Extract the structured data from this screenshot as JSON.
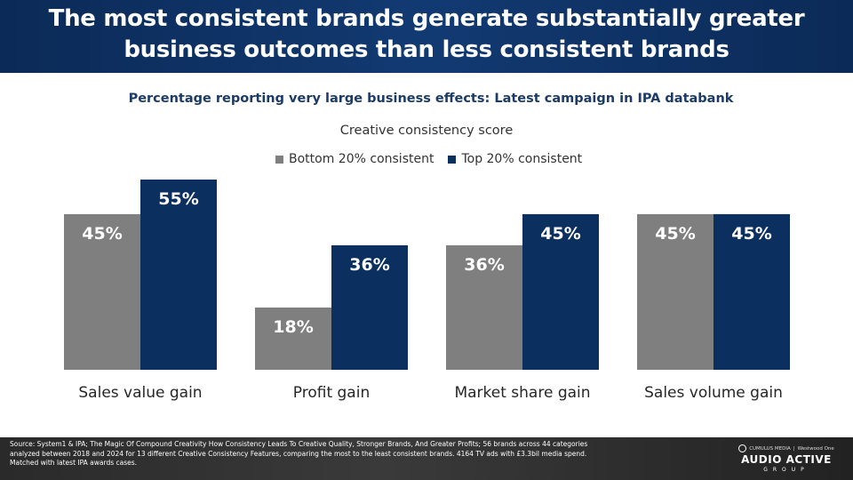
{
  "header": {
    "title": "The most consistent brands generate substantially greater business outcomes than less consistent brands"
  },
  "subtitle": "Percentage reporting very large business effects:  Latest campaign in IPA databank",
  "colors": {
    "bottom": "#7f7f7f",
    "top": "#0b2f5e",
    "header_bg": "#0b2a57"
  },
  "chart_data": {
    "type": "bar",
    "legend_title": "Creative consistency score",
    "categories": [
      "Sales value gain",
      "Profit gain",
      "Market share gain",
      "Sales volume gain"
    ],
    "series": [
      {
        "name": "Bottom 20% consistent",
        "values": [
          45,
          18,
          36,
          45
        ],
        "labels": [
          "45%",
          "18%",
          "36%",
          "45%"
        ]
      },
      {
        "name": "Top 20% consistent",
        "values": [
          55,
          36,
          45,
          45
        ],
        "labels": [
          "55%",
          "36%",
          "45%",
          "45%"
        ]
      }
    ],
    "ylim": [
      0,
      55
    ],
    "grid": false,
    "legend_position": "top"
  },
  "footer": {
    "source": "Source: System1 & IPA; The  Magic Of Compound  Creativity How Consistency Leads To Creative Quality, Stronger Brands, And Greater Profits; 56 brands across 44 categories analyzed between 2018 and 2024 for 13 different Creative Consistency Features, comparing  the most to the least consistent brands. 4164 TV ads with £3.3bil media spend.  Matched with latest IPA awards cases.",
    "logo_top_left": "CUMULUS MEDIA",
    "logo_top_right": "Westwood One",
    "logo_main": "AUDIO ACTIVE",
    "logo_sub": "GROUP"
  }
}
